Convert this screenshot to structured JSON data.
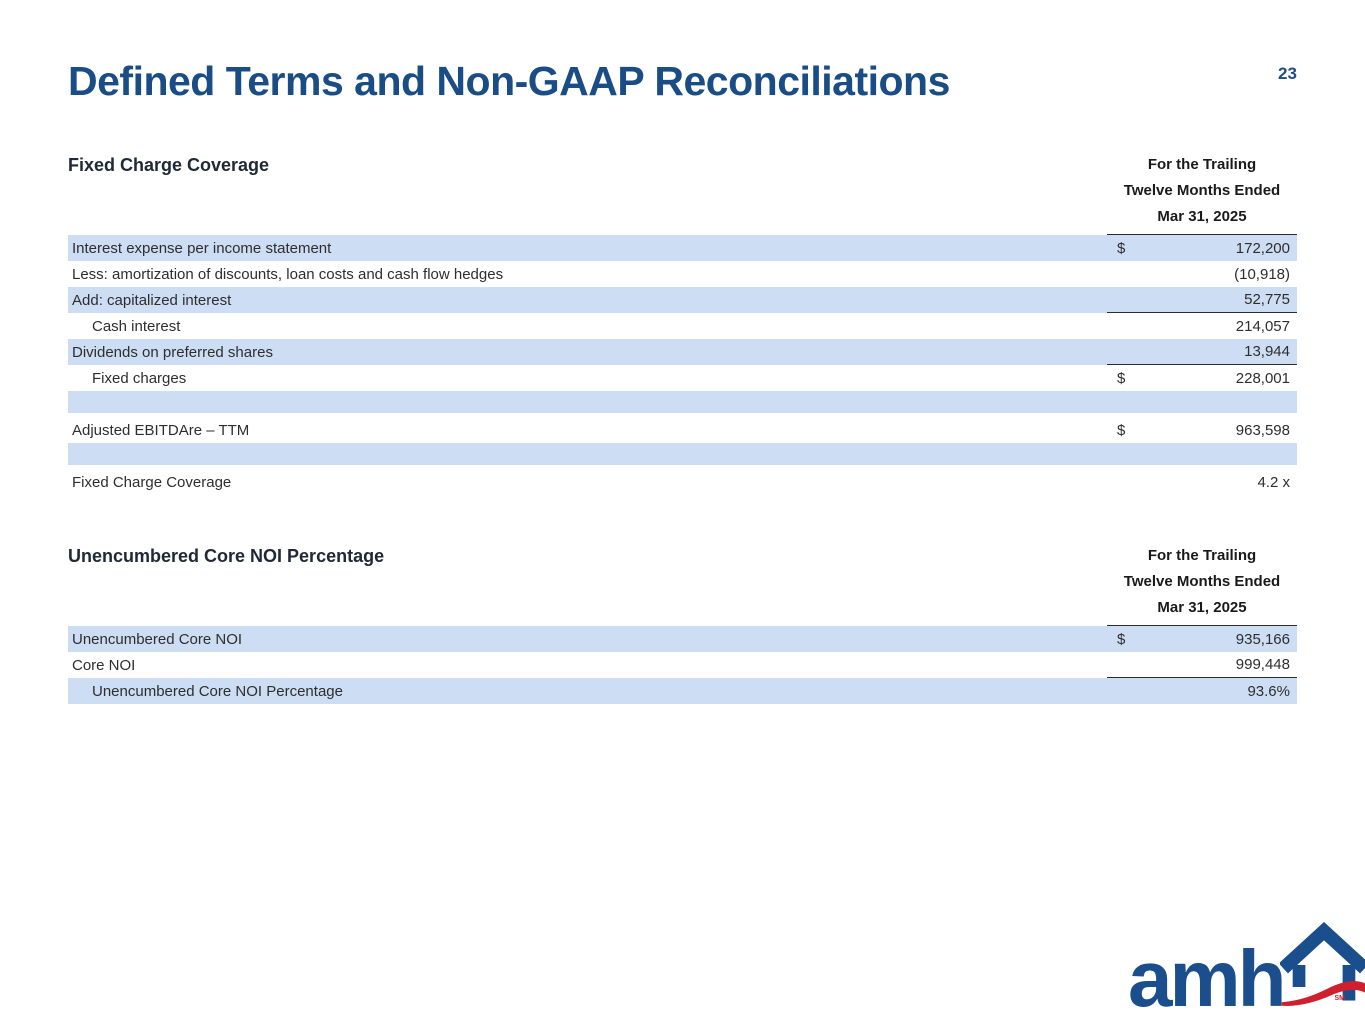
{
  "page": {
    "title": "Defined Terms and Non-GAAP Reconciliations",
    "number": "23"
  },
  "colors": {
    "accent_blue": "#1a4d86",
    "shaded_row_blue": "#cdddf3",
    "rule_dark": "#2b2b2b",
    "logo_blue": "#1b4e8c",
    "logo_red": "#cf2030"
  },
  "tables": [
    {
      "heading": "Fixed Charge Coverage",
      "period_header": [
        "For the Trailing",
        "Twelve Months Ended",
        "Mar 31, 2025"
      ],
      "rows": [
        {
          "label": "Interest expense per income statement",
          "dollar": "$",
          "value": "172,200",
          "shaded": true
        },
        {
          "label": "Less: amortization of discounts, loan costs and cash flow hedges",
          "value": "(10,918)"
        },
        {
          "label": "Add: capitalized interest",
          "value": "52,775",
          "shaded": true,
          "rule_below": true
        },
        {
          "label": "Cash interest",
          "value": "214,057",
          "indent": true
        },
        {
          "label": "Dividends on preferred shares",
          "value": "13,944",
          "shaded": true,
          "rule_below": true
        },
        {
          "label": "Fixed charges",
          "dollar": "$",
          "value": "228,001",
          "indent": true
        },
        {
          "spacer": true,
          "shaded": true
        },
        {
          "label": "Adjusted EBITDAre – TTM",
          "dollar": "$",
          "value": "963,598"
        },
        {
          "spacer": true,
          "shaded": true
        },
        {
          "label": "Fixed Charge Coverage",
          "value": "4.2 x"
        }
      ]
    },
    {
      "heading": "Unencumbered Core NOI Percentage",
      "period_header": [
        "For the Trailing",
        "Twelve Months Ended",
        "Mar 31, 2025"
      ],
      "rows": [
        {
          "label": "Unencumbered Core NOI",
          "dollar": "$",
          "value": "935,166",
          "shaded": true
        },
        {
          "label": "Core NOI",
          "value": "999,448",
          "rule_below": true
        },
        {
          "label": "Unencumbered Core NOI Percentage",
          "value": "93.6%",
          "shaded": true,
          "indent": true
        }
      ]
    }
  ],
  "logo": {
    "wordmark": "amh",
    "sm": "SM"
  }
}
